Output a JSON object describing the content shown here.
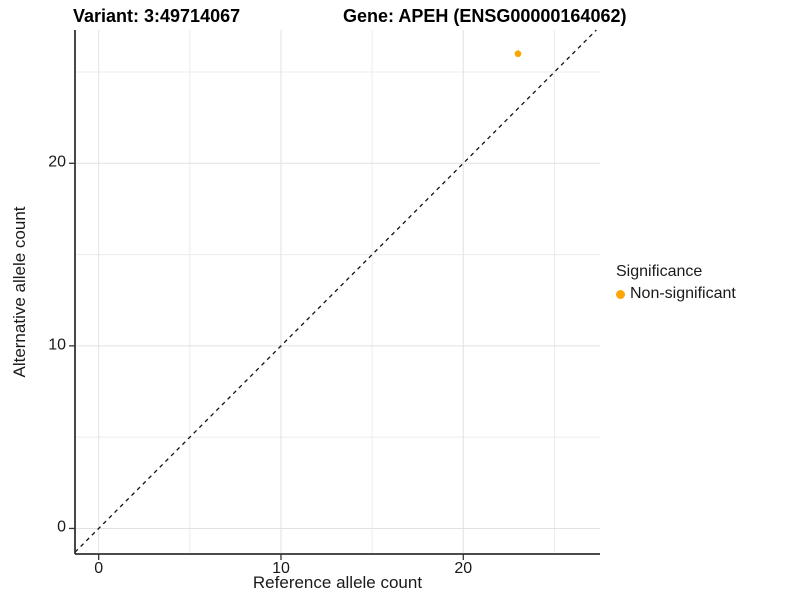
{
  "titles": {
    "left": "Variant: 3:49714067",
    "right": "Gene: APEH (ENSG00000164062)"
  },
  "axes": {
    "x_label": "Reference allele count",
    "y_label": "Alternative allele count"
  },
  "legend": {
    "title": "Significance",
    "items": [
      {
        "label": "Non-significant",
        "color": "#FFA500"
      }
    ]
  },
  "chart_data": {
    "type": "scatter",
    "title": "Variant: 3:49714067 — Gene: APEH (ENSG00000164062)",
    "xlabel": "Reference allele count",
    "ylabel": "Alternative allele count",
    "xlim": [
      -1.3,
      27.5
    ],
    "ylim": [
      -1.4,
      27.3
    ],
    "x_ticks": [
      0,
      10,
      20
    ],
    "y_ticks": [
      0,
      10,
      20
    ],
    "x_minor_gridlines": [
      5,
      15,
      25
    ],
    "y_minor_gridlines": [
      5,
      15,
      25
    ],
    "grid": true,
    "legend_position": "right",
    "identity_line": {
      "equation": "y = x",
      "style": "dashed",
      "color": "#111111"
    },
    "series": [
      {
        "name": "Non-significant",
        "color": "#FFA500",
        "points": [
          {
            "x": 23,
            "y": 26
          }
        ]
      }
    ],
    "colors": {
      "major_grid": "#e2e2e2",
      "minor_grid": "#ececec",
      "axis_line": "#333333",
      "tick_mark": "#333333"
    }
  }
}
